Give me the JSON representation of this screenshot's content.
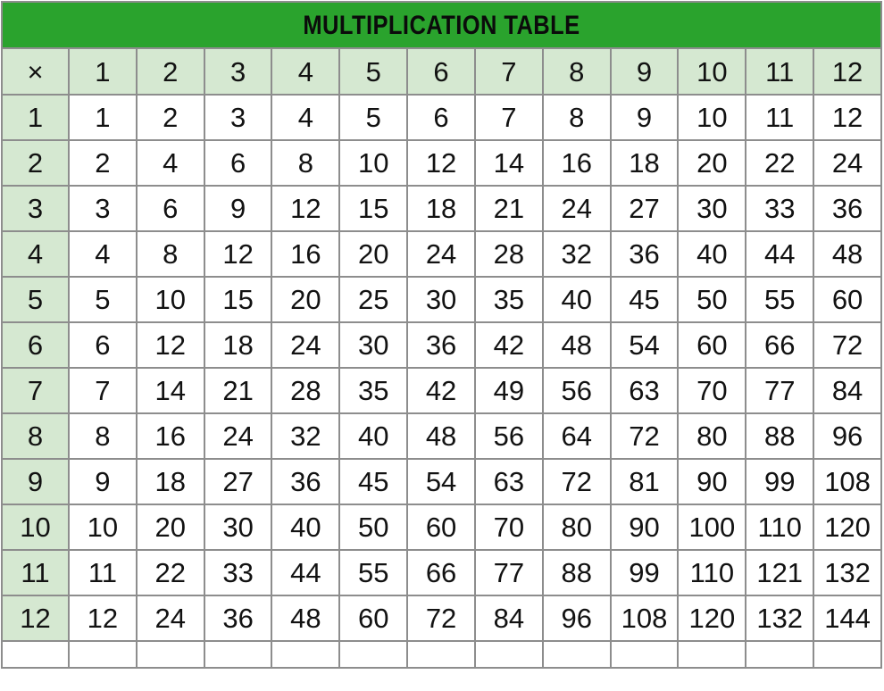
{
  "title": "MULTIPLICATION TABLE",
  "colors": {
    "title_bar_green": "#2aa32d",
    "header_cell_green": "#d5e8d1",
    "grid_border_gray": "#8d8d8d",
    "text_black": "#121212",
    "cell_white": "#ffffff"
  },
  "chart_data": {
    "type": "table",
    "title": "MULTIPLICATION TABLE",
    "corner_label": "×",
    "column_headers": [
      "1",
      "2",
      "3",
      "4",
      "5",
      "6",
      "7",
      "8",
      "9",
      "10",
      "11",
      "12"
    ],
    "row_headers": [
      "1",
      "2",
      "3",
      "4",
      "5",
      "6",
      "7",
      "8",
      "9",
      "10",
      "11",
      "12"
    ],
    "values": [
      [
        1,
        2,
        3,
        4,
        5,
        6,
        7,
        8,
        9,
        10,
        11,
        12
      ],
      [
        2,
        4,
        6,
        8,
        10,
        12,
        14,
        16,
        18,
        20,
        22,
        24
      ],
      [
        3,
        6,
        9,
        12,
        15,
        18,
        21,
        24,
        27,
        30,
        33,
        36
      ],
      [
        4,
        8,
        12,
        16,
        20,
        24,
        28,
        32,
        36,
        40,
        44,
        48
      ],
      [
        5,
        10,
        15,
        20,
        25,
        30,
        35,
        40,
        45,
        50,
        55,
        60
      ],
      [
        6,
        12,
        18,
        24,
        30,
        36,
        42,
        48,
        54,
        60,
        66,
        72
      ],
      [
        7,
        14,
        21,
        28,
        35,
        42,
        49,
        56,
        63,
        70,
        77,
        84
      ],
      [
        8,
        16,
        24,
        32,
        40,
        48,
        56,
        64,
        72,
        80,
        88,
        96
      ],
      [
        9,
        18,
        27,
        36,
        45,
        54,
        63,
        72,
        81,
        90,
        99,
        108
      ],
      [
        10,
        20,
        30,
        40,
        50,
        60,
        70,
        80,
        90,
        100,
        110,
        120
      ],
      [
        11,
        22,
        33,
        44,
        55,
        66,
        77,
        88,
        99,
        110,
        121,
        132
      ],
      [
        12,
        24,
        36,
        48,
        60,
        72,
        84,
        96,
        108,
        120,
        132,
        144
      ]
    ],
    "layout_hints": {
      "grid": true,
      "header_row_position": "top",
      "header_column_position": "left",
      "clipped_empty_row_at_bottom": true
    }
  }
}
